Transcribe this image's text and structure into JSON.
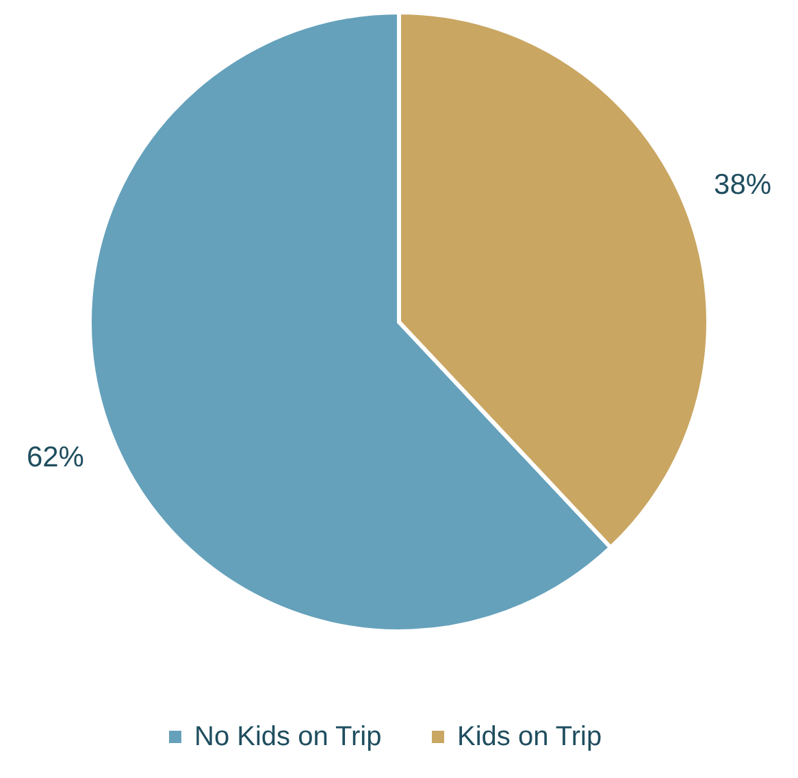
{
  "chart_data": {
    "type": "pie",
    "categories": [
      "No Kids on Trip",
      "Kids on Trip"
    ],
    "values": [
      62,
      38
    ],
    "colors": [
      "#65a1bb",
      "#c9a662"
    ],
    "value_labels": [
      "62%",
      "38%"
    ],
    "legend": "bottom"
  }
}
